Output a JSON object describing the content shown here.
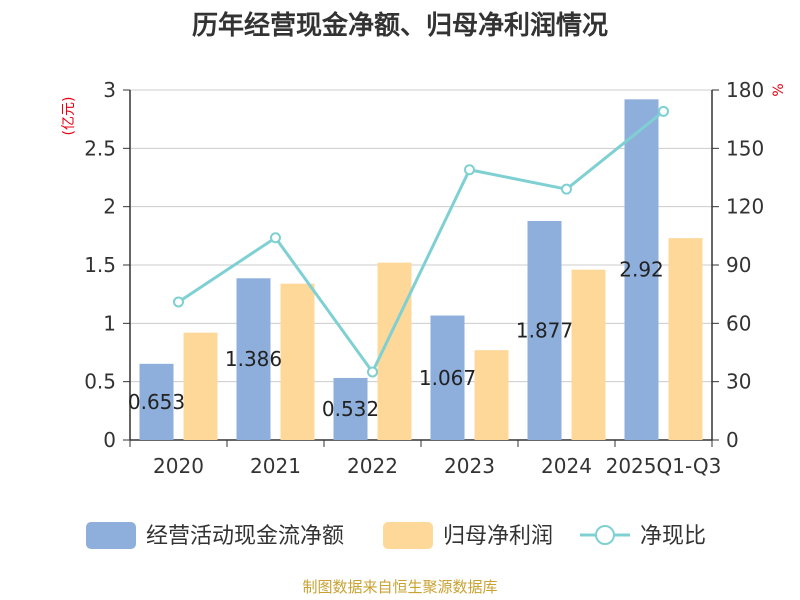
{
  "chart_data": {
    "type": "bar",
    "title": "历年经营现金净额、归母净利润情况",
    "categories": [
      "2020",
      "2021",
      "2022",
      "2023",
      "2024",
      "2025Q1-Q3"
    ],
    "y_left": {
      "unit": "(亿元)",
      "min": 0,
      "max": 3,
      "ticks": [
        "0",
        "0.5",
        "1",
        "1.5",
        "2",
        "2.5",
        "3"
      ]
    },
    "y_right": {
      "unit": "%",
      "min": 0,
      "max": 180,
      "ticks": [
        "0",
        "30",
        "60",
        "90",
        "120",
        "150",
        "180"
      ]
    },
    "grid": true,
    "legend_position": "bottom",
    "series": [
      {
        "name": "经营活动现金流净额",
        "type": "bar",
        "axis": "left",
        "color": "#8eaedb",
        "values": [
          0.653,
          1.386,
          0.532,
          1.067,
          1.877,
          2.92
        ],
        "labels": [
          "0.653",
          "1.386",
          "0.532",
          "1.067",
          "1.877",
          "2.92"
        ]
      },
      {
        "name": "归母净利润",
        "type": "bar",
        "axis": "left",
        "color": "#fdd898",
        "values": [
          0.92,
          1.34,
          1.52,
          0.77,
          1.46,
          1.73
        ]
      },
      {
        "name": "净现比",
        "type": "line",
        "axis": "right",
        "color": "#7fd0d3",
        "values": [
          71,
          104,
          35,
          139,
          129,
          169
        ]
      }
    ]
  },
  "source": "制图数据来自恒生聚源数据库"
}
